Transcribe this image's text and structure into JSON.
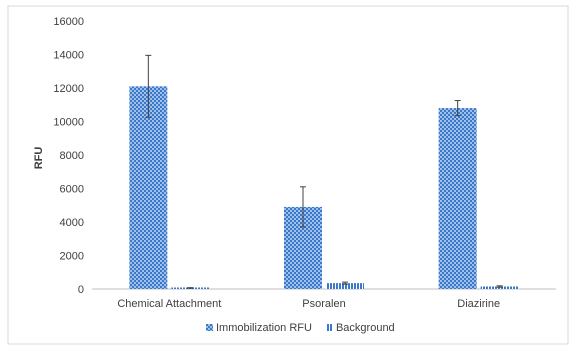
{
  "chart_data": {
    "type": "bar",
    "categories": [
      "Chemical Attachment",
      "Psoralen",
      "Diazirine"
    ],
    "series": [
      {
        "name": "Immobilization RFU",
        "values": [
          12100,
          4900,
          10800
        ],
        "errors": [
          1850,
          1200,
          450
        ],
        "color": "#3c78c8",
        "pattern": "checker"
      },
      {
        "name": "Background",
        "values": [
          60,
          350,
          150
        ],
        "errors": [
          20,
          60,
          40
        ],
        "color": "#3c78c8",
        "pattern": "vertical-stripes"
      }
    ],
    "title": "",
    "xlabel": "",
    "ylabel": "RFU",
    "ylim": [
      0,
      16000
    ],
    "yticks": [
      "0",
      "2000",
      "4000",
      "6000",
      "8000",
      "10000",
      "12000",
      "14000",
      "16000"
    ],
    "grid": false,
    "legend": "bottom"
  }
}
